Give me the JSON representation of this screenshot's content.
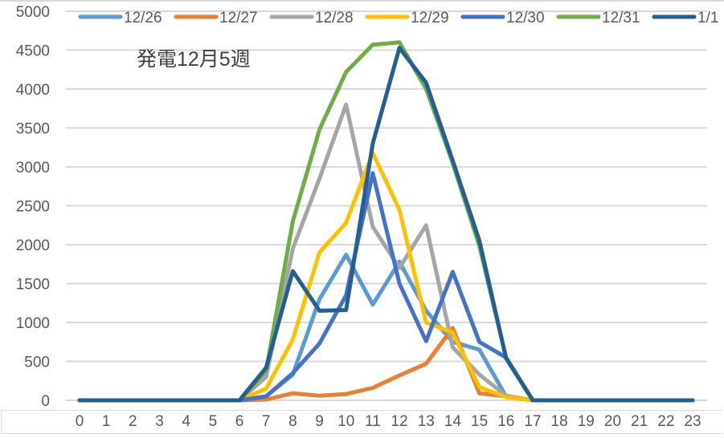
{
  "chart_data": {
    "type": "line",
    "title": "発電12月5週",
    "xlabel": "",
    "ylabel": "",
    "ylim": [
      0,
      5000
    ],
    "yticks": [
      0,
      500,
      1000,
      1500,
      2000,
      2500,
      3000,
      3500,
      4000,
      4500,
      5000
    ],
    "grid": true,
    "legend_position": "top",
    "x": [
      0,
      1,
      2,
      3,
      4,
      5,
      6,
      7,
      8,
      9,
      10,
      11,
      12,
      13,
      14,
      15,
      16,
      17,
      18,
      19,
      20,
      21,
      22,
      23
    ],
    "series": [
      {
        "name": "12/26",
        "color": "#5b9bd5",
        "values": [
          0,
          0,
          0,
          0,
          0,
          0,
          0,
          50,
          330,
          1300,
          1870,
          1230,
          1780,
          1150,
          750,
          650,
          50,
          0,
          0,
          0,
          0,
          0,
          0,
          0
        ]
      },
      {
        "name": "12/27",
        "color": "#ed7d31",
        "values": [
          0,
          0,
          0,
          0,
          0,
          0,
          0,
          10,
          90,
          60,
          80,
          160,
          320,
          470,
          930,
          90,
          50,
          0,
          0,
          0,
          0,
          0,
          0,
          0
        ]
      },
      {
        "name": "12/28",
        "color": "#a5a5a5",
        "values": [
          0,
          0,
          0,
          0,
          0,
          0,
          0,
          300,
          1950,
          2850,
          3800,
          2230,
          1700,
          2250,
          680,
          330,
          60,
          0,
          0,
          0,
          0,
          0,
          0,
          0
        ]
      },
      {
        "name": "12/29",
        "color": "#ffc000",
        "values": [
          0,
          0,
          0,
          0,
          0,
          0,
          0,
          150,
          780,
          1900,
          2280,
          3180,
          2450,
          1000,
          870,
          170,
          40,
          0,
          0,
          0,
          0,
          0,
          0,
          0
        ]
      },
      {
        "name": "12/30",
        "color": "#4472c4",
        "values": [
          0,
          0,
          0,
          0,
          0,
          0,
          0,
          50,
          350,
          730,
          1350,
          2920,
          1500,
          760,
          1650,
          750,
          550,
          0,
          0,
          0,
          0,
          0,
          0,
          0
        ]
      },
      {
        "name": "12/31",
        "color": "#70ad47",
        "values": [
          0,
          0,
          0,
          0,
          0,
          0,
          0,
          380,
          2300,
          3480,
          4220,
          4570,
          4600,
          4000,
          3050,
          1980,
          550,
          0,
          0,
          0,
          0,
          0,
          0,
          0
        ]
      },
      {
        "name": "1/1",
        "color": "#255e91",
        "values": [
          0,
          0,
          0,
          0,
          0,
          0,
          0,
          420,
          1660,
          1150,
          1160,
          3300,
          4530,
          4080,
          3080,
          2050,
          540,
          0,
          0,
          0,
          0,
          0,
          0,
          0
        ]
      }
    ]
  }
}
